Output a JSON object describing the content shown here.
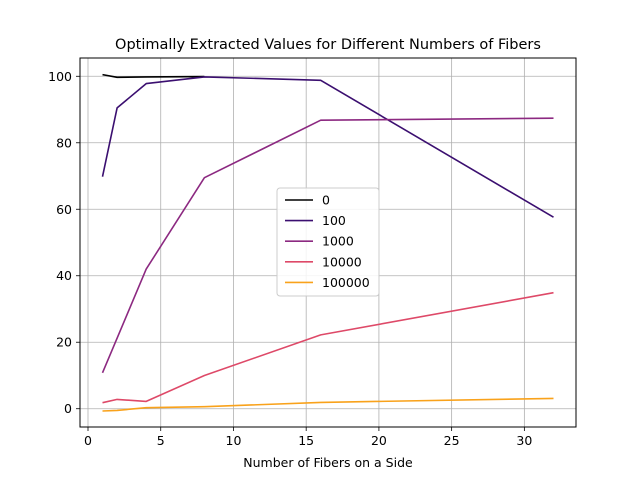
{
  "chart_data": {
    "type": "line",
    "title": "Optimally Extracted Values for Different Numbers of Fibers",
    "xlabel": "Number of Fibers on a Side",
    "ylabel": "",
    "xlim": [
      -0.55,
      33.55
    ],
    "ylim": [
      -5.5,
      105.5
    ],
    "xticks": [
      0,
      5,
      10,
      15,
      20,
      25,
      30
    ],
    "yticks": [
      0,
      20,
      40,
      60,
      80,
      100
    ],
    "grid": true,
    "legend_position": "center",
    "series": [
      {
        "name": "0",
        "color": "#000000",
        "x": [
          1,
          2,
          4,
          8
        ],
        "y": [
          100.5,
          99.7,
          99.8,
          99.9
        ]
      },
      {
        "name": "100",
        "color": "#3b0f70",
        "x": [
          1,
          2,
          4,
          8,
          16,
          32
        ],
        "y": [
          69.8,
          90.5,
          97.8,
          99.8,
          98.8,
          57.6
        ]
      },
      {
        "name": "1000",
        "color": "#8c2981",
        "x": [
          1,
          4,
          8,
          16,
          32
        ],
        "y": [
          10.8,
          42.0,
          69.5,
          86.8,
          87.4
        ]
      },
      {
        "name": "10000",
        "color": "#de4968",
        "x": [
          1,
          2,
          4,
          8,
          16,
          32
        ],
        "y": [
          1.8,
          2.8,
          2.2,
          10.0,
          22.2,
          34.9
        ]
      },
      {
        "name": "100000",
        "color": "#f9a21b",
        "x": [
          1,
          2,
          4,
          8,
          16,
          32
        ],
        "y": [
          -0.7,
          -0.5,
          0.3,
          0.6,
          1.9,
          3.1
        ]
      }
    ]
  }
}
